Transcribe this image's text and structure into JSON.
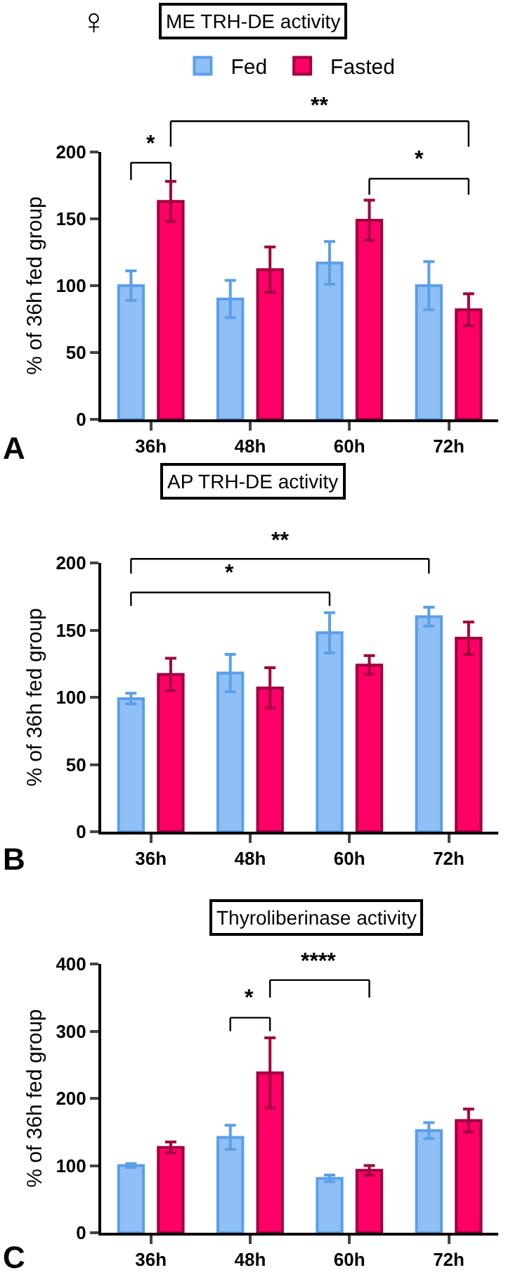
{
  "chart_data": [
    {
      "type": "bar",
      "title": "ME TRH-DE activity",
      "ylabel": "% of 36h fed group",
      "categories": [
        "36h",
        "48h",
        "60h",
        "72h"
      ],
      "legend": "top",
      "ylim": [
        0,
        200
      ],
      "yticks": [
        0,
        50,
        100,
        150,
        200
      ],
      "series": [
        {
          "name": "Fed",
          "color": "#8fc0f5",
          "values": [
            100,
            90,
            117,
            100
          ],
          "errors": [
            11,
            14,
            16,
            18
          ]
        },
        {
          "name": "Fasted",
          "color": "#ff0066",
          "values": [
            163,
            112,
            149,
            82
          ],
          "errors": [
            15,
            17,
            15,
            12
          ]
        }
      ],
      "annotations": [
        "♀",
        "A",
        "*",
        "**",
        "*"
      ]
    },
    {
      "type": "bar",
      "title": "AP TRH-DE activity",
      "ylabel": "% of 36h fed group",
      "categories": [
        "36h",
        "48h",
        "60h",
        "72h"
      ],
      "ylim": [
        0,
        200
      ],
      "yticks": [
        0,
        50,
        100,
        150,
        200
      ],
      "series": [
        {
          "color": "#8fc0f5",
          "values": [
            99,
            118,
            148,
            160
          ],
          "errors": [
            4,
            14,
            15,
            7
          ]
        },
        {
          "color": "#ff0066",
          "values": [
            117,
            107,
            124,
            144
          ],
          "errors": [
            12,
            15,
            7,
            12
          ]
        }
      ],
      "annotations": [
        "B",
        "**",
        "*"
      ]
    },
    {
      "type": "bar",
      "title": "Thyroliberinase activity",
      "ylabel": "% of 36h fed group",
      "categories": [
        "36h",
        "48h",
        "60h",
        "72h"
      ],
      "ylim": [
        0,
        400
      ],
      "yticks": [
        0,
        100,
        200,
        300,
        400
      ],
      "series": [
        {
          "color": "#8fc0f5",
          "values": [
            100,
            142,
            81,
            152
          ],
          "errors": [
            3,
            18,
            5,
            12
          ]
        },
        {
          "color": "#ff0066",
          "values": [
            127,
            238,
            93,
            167
          ],
          "errors": [
            8,
            52,
            7,
            17
          ]
        }
      ],
      "annotations": [
        "C",
        "*",
        "****"
      ]
    }
  ]
}
